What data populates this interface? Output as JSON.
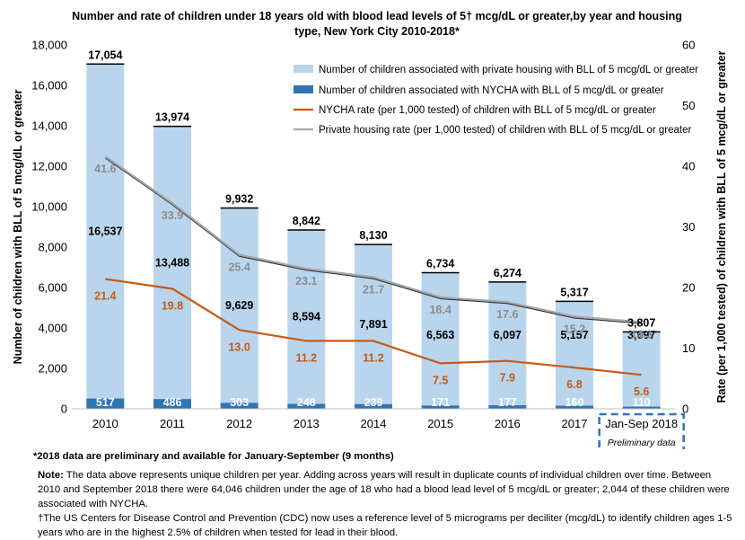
{
  "title_line1": "Number and rate of children under 18 years old with blood lead levels of 5† mcg/dL or greater,by year and housing",
  "title_line2": "type, New York City 2010-2018*",
  "chart_data": {
    "type": "bar",
    "stacked": true,
    "categories": [
      "2010",
      "2011",
      "2012",
      "2013",
      "2014",
      "2015",
      "2016",
      "2017",
      "Jan-Sep 2018"
    ],
    "highlight_category_sublabel": "Preliminary data",
    "series": [
      {
        "name": "Number of children associated with private housing with BLL of 5 mcg/dL or greater",
        "kind": "bar",
        "axis": "left",
        "color": "#b9d5ee",
        "values": [
          16537,
          13488,
          9629,
          8594,
          7891,
          6563,
          6097,
          5157,
          3697
        ],
        "labels": [
          "16,537",
          "13,488",
          "9,629",
          "8,594",
          "7,891",
          "6,563",
          "6,097",
          "5,157",
          "3,697"
        ]
      },
      {
        "name": "Number of children associated with NYCHA with BLL of 5 mcg/dL or greater",
        "kind": "bar",
        "axis": "left",
        "color": "#2f74b5",
        "values": [
          517,
          486,
          303,
          248,
          239,
          171,
          177,
          160,
          110
        ],
        "labels": [
          "517",
          "486",
          "303",
          "248",
          "239",
          "171",
          "177",
          "160",
          "110"
        ]
      },
      {
        "name": "NYCHA rate (per 1,000 tested) of children with BLL of 5 mcg/dL or greater",
        "kind": "line",
        "axis": "right",
        "color": "#c55a11",
        "values": [
          21.4,
          19.8,
          13.0,
          11.2,
          11.2,
          7.5,
          7.9,
          6.8,
          5.6
        ],
        "labels": [
          "21.4",
          "19.8",
          "13.0",
          "11.2",
          "11.2",
          "7.5",
          "7.9",
          "6.8",
          "5.6"
        ]
      },
      {
        "name": "Private housing rate (per 1,000 tested) of children with BLL of 5 mcg/dL or greater",
        "kind": "line",
        "axis": "right",
        "color": "#a5a5a5",
        "values": [
          41.6,
          33.9,
          25.4,
          23.1,
          21.7,
          18.4,
          17.6,
          15.2,
          14.3
        ],
        "labels": [
          "41.6",
          "33.9",
          "25.4",
          "23.1",
          "21.7",
          "18.4",
          "17.6",
          "15.2",
          "14.3"
        ]
      }
    ],
    "totals": [
      17054,
      13974,
      9932,
      8842,
      8130,
      6734,
      6274,
      5317,
      3807
    ],
    "total_labels": [
      "17,054",
      "13,974",
      "9,932",
      "8,842",
      "8,130",
      "6,734",
      "6,274",
      "5,317",
      "3,807"
    ],
    "ylabel_left": "Number of children with BLL of 5 mcg/dL or greater",
    "ylabel_right": "Rate (per 1,000 tested) of children with BLL of 5 mcg/dL or greater",
    "ylim_left": [
      0,
      18000
    ],
    "yticks_left": [
      "0",
      "2,000",
      "4,000",
      "6,000",
      "8,000",
      "10,000",
      "12,000",
      "14,000",
      "16,000",
      "18,000"
    ],
    "ylim_right": [
      0,
      60
    ],
    "yticks_right": [
      "0",
      "10",
      "20",
      "30",
      "40",
      "50",
      "60"
    ],
    "legend_position": "top-right",
    "grid": false
  },
  "footnotes": {
    "star": "*2018 data are preliminary and available for January-September (9 months)",
    "note_label": "Note:",
    "note_text": " The data above represents unique children per year. Adding across years will result in duplicate counts of individual children over time. Between 2010 and September 2018 there were 64,046 children under the age of 18 who had a blood lead level of 5 mcg/dL or greater; 2,044 of these children were associated with NYCHA.",
    "dagger": "†The US Centers for Disease Control and Prevention (CDC) now uses a reference level of 5 micrograms per deciliter (mcg/dL) to identify children ages 1-5 years who are in the highest 2.5% of children when tested for lead in their blood."
  },
  "colors": {
    "private_bar": "#b9d5ee",
    "nycha_bar": "#2f74b5",
    "nycha_line": "#c55a11",
    "private_line": "#a5a5a5",
    "preliminary_box": "#2e75b6"
  }
}
